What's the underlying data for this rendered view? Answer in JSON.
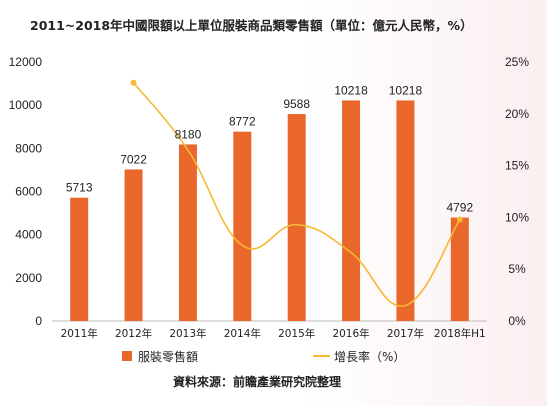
{
  "chart_data": {
    "type": "bar",
    "title": "2011~2018年中國限額以上單位服裝商品類零售額（單位：億元人民幣，%）",
    "categories": [
      "2011年",
      "2012年",
      "2013年",
      "2014年",
      "2015年",
      "2016年",
      "2017年",
      "2018年H1"
    ],
    "series": [
      {
        "name": "服裝零售額",
        "type": "bar",
        "axis": "left",
        "color": "#e9672b",
        "values": [
          5713,
          7022,
          8180,
          8772,
          9588,
          10218,
          10218,
          4792
        ],
        "labels": [
          "5713",
          "7022",
          "8180",
          "8772",
          "9588",
          "10218",
          "10218",
          "4792"
        ]
      },
      {
        "name": "增長率（%）",
        "type": "line",
        "axis": "right",
        "color": "#f5b935",
        "values": [
          null,
          23,
          16.5,
          7.3,
          9.3,
          6.6,
          1.5,
          9.8
        ]
      }
    ],
    "y_left": {
      "ylim": [
        0,
        12000
      ],
      "ticks": [
        "0",
        "2000",
        "4000",
        "6000",
        "8000",
        "10000",
        "12000"
      ]
    },
    "y_right": {
      "ylim": [
        0,
        25
      ],
      "ticks": [
        "0%",
        "5%",
        "10%",
        "15%",
        "20%",
        "25%"
      ]
    },
    "legend": {
      "position": "bottom"
    },
    "grid": false,
    "source": "資料來源：前瞻產業研究院整理"
  }
}
